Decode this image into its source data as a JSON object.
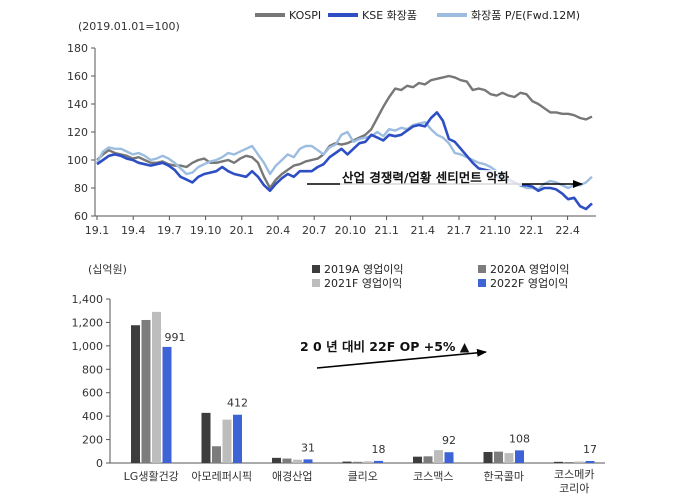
{
  "chart_data": [
    {
      "type": "line",
      "note": "(2019.01.01=100)",
      "ylim": [
        60,
        180
      ],
      "yticks": [
        "180",
        "160",
        "140",
        "120",
        "100",
        "80",
        "60"
      ],
      "xticks": [
        "19.1",
        "19.4",
        "19.7",
        "19.10",
        "20.1",
        "20.4",
        "20.7",
        "20.10",
        "21.1",
        "21.4",
        "21.7",
        "21.10",
        "22.1",
        "22.4"
      ],
      "grid": false,
      "legend": "top",
      "annotation": "산업 경쟁력/업황 센티먼트  악화",
      "series": [
        {
          "name": "KOSPI",
          "color": "#777777",
          "values": [
            100,
            104,
            107,
            105,
            104,
            103,
            101,
            102,
            100,
            98,
            98,
            99,
            97,
            96,
            96,
            95,
            98,
            100,
            101,
            98,
            98,
            99,
            100,
            98,
            101,
            103,
            102,
            98,
            88,
            80,
            86,
            90,
            93,
            96,
            97,
            99,
            100,
            101,
            104,
            110,
            112,
            111,
            112,
            114,
            116,
            118,
            122,
            130,
            138,
            145,
            151,
            150,
            153,
            152,
            155,
            154,
            157,
            158,
            159,
            160,
            159,
            157,
            156,
            150,
            151,
            150,
            147,
            146,
            148,
            146,
            145,
            148,
            147,
            142,
            140,
            137,
            134,
            134,
            133,
            133,
            132,
            130,
            129,
            131
          ]
        },
        {
          "name": "KSE 화장품",
          "color": "#2e4fc4",
          "values": [
            97,
            100,
            103,
            104,
            103,
            101,
            100,
            98,
            97,
            96,
            97,
            98,
            96,
            93,
            88,
            86,
            84,
            88,
            90,
            91,
            92,
            95,
            92,
            90,
            89,
            88,
            92,
            88,
            82,
            78,
            83,
            87,
            90,
            88,
            92,
            92,
            92,
            95,
            97,
            102,
            105,
            108,
            104,
            108,
            112,
            113,
            118,
            116,
            114,
            118,
            117,
            118,
            121,
            124,
            125,
            124,
            130,
            134,
            128,
            115,
            113,
            108,
            103,
            98,
            94,
            93,
            92,
            88,
            88,
            86,
            84,
            82,
            82,
            81,
            78,
            80,
            80,
            79,
            76,
            72,
            73,
            67,
            65,
            69
          ]
        },
        {
          "name": "화장품  P/E(Fwd.12M)",
          "color": "#9cbde0",
          "values": [
            98,
            106,
            109,
            108,
            108,
            106,
            104,
            105,
            103,
            100,
            101,
            103,
            101,
            98,
            94,
            90,
            91,
            95,
            97,
            99,
            100,
            102,
            105,
            104,
            106,
            108,
            110,
            104,
            98,
            90,
            96,
            100,
            104,
            102,
            108,
            110,
            110,
            107,
            104,
            109,
            111,
            118,
            120,
            113,
            115,
            116,
            117,
            120,
            117,
            122,
            121,
            123,
            122,
            125,
            126,
            127,
            122,
            118,
            116,
            112,
            105,
            104,
            102,
            100,
            98,
            97,
            95,
            92,
            88,
            85,
            84,
            82,
            80,
            80,
            79,
            83,
            85,
            84,
            82,
            80,
            82,
            82,
            84,
            88
          ]
        }
      ]
    },
    {
      "type": "bar",
      "unit": "(십억원)",
      "ylim": [
        0,
        1400
      ],
      "yticks": [
        "1,400",
        "1,200",
        "1,000",
        "800",
        "600",
        "400",
        "200",
        "0"
      ],
      "legend": "top-right",
      "annotation": "2 0 년 대비 22F OP +5% ▲",
      "categories": [
        "LG생활건강",
        "아모레퍼시픽",
        "애경산업",
        "클리오",
        "코스맥스",
        "한국콜마",
        "코스메카 코리아"
      ],
      "series": [
        {
          "name": "2019A  영업이익",
          "color": "#3d3d3d",
          "values": [
            1176,
            428,
            44,
            12,
            54,
            94,
            10
          ]
        },
        {
          "name": "2020A  영업이익",
          "color": "#7c7c7c",
          "values": [
            1221,
            143,
            38,
            10,
            57,
            97,
            8
          ]
        },
        {
          "name": "2021F  영업이익",
          "color": "#bdbdbd",
          "values": [
            1290,
            370,
            28,
            14,
            110,
            85,
            13
          ]
        },
        {
          "name": "2022F  영업이익",
          "color": "#3e63d6",
          "values": [
            991,
            412,
            31,
            18,
            92,
            108,
            17
          ]
        }
      ],
      "data_labels": [
        "991",
        "412",
        "31",
        "18",
        "92",
        "108",
        "17"
      ]
    }
  ]
}
